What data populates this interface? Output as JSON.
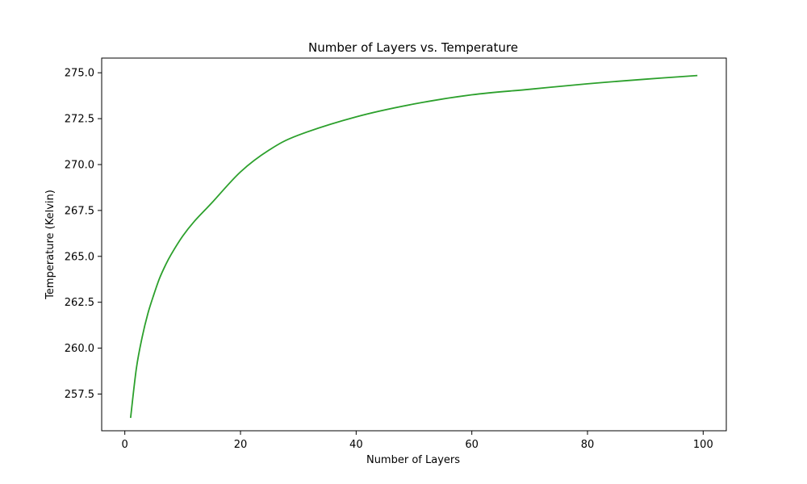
{
  "chart_data": {
    "type": "line",
    "title": "Number of Layers vs. Temperature",
    "xlabel": "Number of Layers",
    "ylabel": "Temperature (Kelvin)",
    "xlim": [
      -4,
      104
    ],
    "ylim": [
      255.5,
      275.8
    ],
    "xticks": [
      0,
      20,
      40,
      60,
      80,
      100
    ],
    "xtick_labels": [
      "0",
      "20",
      "40",
      "60",
      "80",
      "100"
    ],
    "yticks": [
      257.5,
      260.0,
      262.5,
      265.0,
      267.5,
      270.0,
      272.5,
      275.0
    ],
    "ytick_labels": [
      "257.5",
      "260.0",
      "262.5",
      "265.0",
      "267.5",
      "270.0",
      "272.5",
      "275.0"
    ],
    "grid": false,
    "series": [
      {
        "color": "#2ca02c",
        "x": [
          1,
          2,
          3,
          4,
          5,
          6,
          7,
          8,
          10,
          12,
          15,
          20,
          25,
          30,
          40,
          50,
          60,
          70,
          80,
          90,
          99
        ],
        "y": [
          256.2,
          258.9,
          260.6,
          261.9,
          262.9,
          263.8,
          264.5,
          265.1,
          266.1,
          266.9,
          267.9,
          269.6,
          270.8,
          271.6,
          272.6,
          273.3,
          273.8,
          274.1,
          274.4,
          274.65,
          274.85
        ]
      }
    ]
  }
}
